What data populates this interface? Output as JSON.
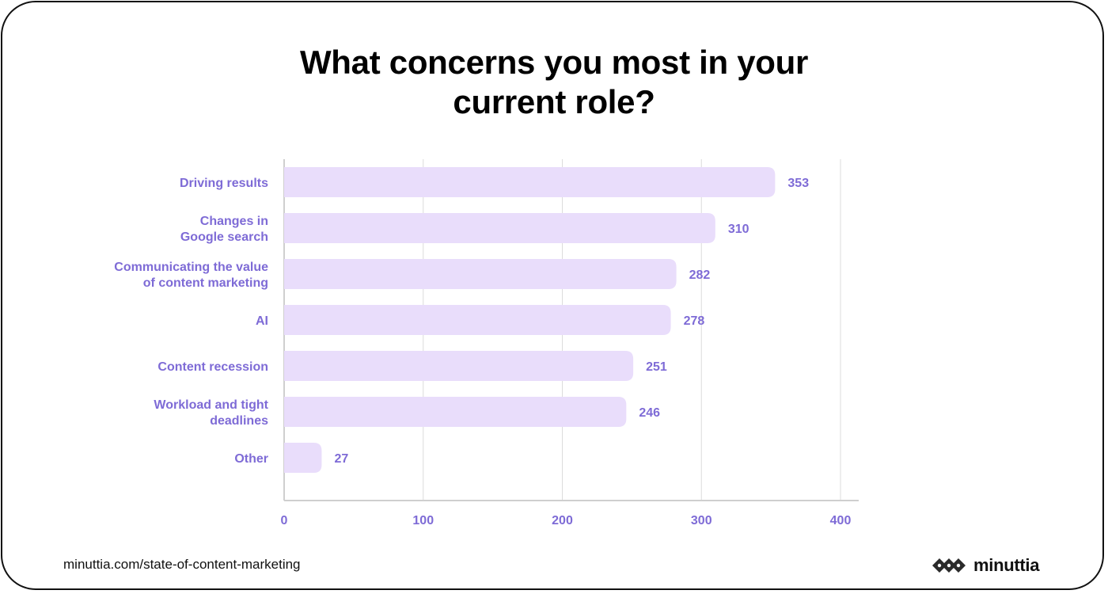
{
  "title_lines": [
    "What concerns you most in your",
    "current role?"
  ],
  "source_text": "minuttia.com/state-of-content-marketing",
  "brand": {
    "name": "minuttia",
    "icon": "diamond-chain-logo-icon"
  },
  "colors": {
    "bar": "#E9DDFB",
    "label": "#7E6BD6",
    "grid": "#DCDCDC",
    "axis": "#CFCFCF",
    "text": "#111111"
  },
  "chart_data": {
    "type": "bar",
    "orientation": "horizontal",
    "title": "What concerns you most in your current role?",
    "categories": [
      [
        "Driving results"
      ],
      [
        "Changes in",
        "Google search"
      ],
      [
        "Communicating the value",
        "of content marketing"
      ],
      [
        "AI"
      ],
      [
        "Content recession"
      ],
      [
        "Workload and tight",
        "deadlines"
      ],
      [
        "Other"
      ]
    ],
    "values": [
      353,
      310,
      282,
      278,
      251,
      246,
      27
    ],
    "value_labels": [
      "353",
      "310",
      "282",
      "278",
      "251",
      "246",
      "27"
    ],
    "xlim": [
      0,
      400
    ],
    "xticks": [
      0,
      100,
      200,
      300,
      400
    ],
    "xtick_labels": [
      "0",
      "100",
      "200",
      "300",
      "400"
    ],
    "grid": true,
    "legend": "none"
  }
}
